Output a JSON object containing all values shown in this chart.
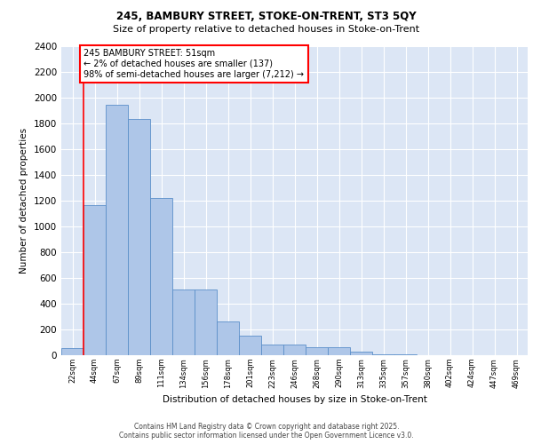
{
  "title1": "245, BAMBURY STREET, STOKE-ON-TRENT, ST3 5QY",
  "title2": "Size of property relative to detached houses in Stoke-on-Trent",
  "xlabel": "Distribution of detached houses by size in Stoke-on-Trent",
  "ylabel": "Number of detached properties",
  "categories": [
    "22sqm",
    "44sqm",
    "67sqm",
    "89sqm",
    "111sqm",
    "134sqm",
    "156sqm",
    "178sqm",
    "201sqm",
    "223sqm",
    "246sqm",
    "268sqm",
    "290sqm",
    "313sqm",
    "335sqm",
    "357sqm",
    "380sqm",
    "402sqm",
    "424sqm",
    "447sqm",
    "469sqm"
  ],
  "values": [
    55,
    1170,
    1950,
    1840,
    1220,
    510,
    510,
    260,
    155,
    80,
    80,
    65,
    65,
    30,
    10,
    5,
    3,
    2,
    1,
    1,
    1
  ],
  "bar_color": "#aec6e8",
  "bar_edge_color": "#5b8fc9",
  "bg_color": "#dce6f5",
  "vline_color": "red",
  "vline_x": 0.5,
  "annotation_text": "245 BAMBURY STREET: 51sqm\n← 2% of detached houses are smaller (137)\n98% of semi-detached houses are larger (7,212) →",
  "annotation_box_color": "white",
  "annotation_box_edge": "red",
  "ylim": [
    0,
    2400
  ],
  "yticks": [
    0,
    200,
    400,
    600,
    800,
    1000,
    1200,
    1400,
    1600,
    1800,
    2000,
    2200,
    2400
  ],
  "footer1": "Contains HM Land Registry data © Crown copyright and database right 2025.",
  "footer2": "Contains public sector information licensed under the Open Government Licence v3.0.",
  "title1_fontsize": 8.5,
  "title2_fontsize": 8.0,
  "ylabel_fontsize": 7.5,
  "xlabel_fontsize": 7.5,
  "ytick_fontsize": 7.5,
  "xtick_fontsize": 6.0,
  "ann_fontsize": 7.0,
  "footer_fontsize": 5.5
}
